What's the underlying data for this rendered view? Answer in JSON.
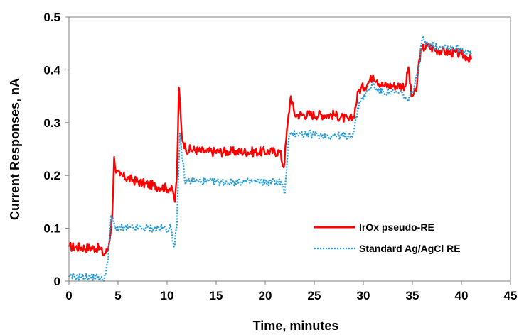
{
  "chart_data": {
    "type": "line",
    "title": "",
    "xlabel": "Time, minutes",
    "ylabel": "Current Responses, nA",
    "xlim": [
      0,
      45
    ],
    "ylim": [
      0,
      0.5
    ],
    "xticks": [
      "0",
      "5",
      "10",
      "15",
      "20",
      "25",
      "30",
      "35",
      "40",
      "45"
    ],
    "yticks": [
      "0",
      "0.1",
      "0.2",
      "0.3",
      "0.4",
      "0.5"
    ],
    "grid": false,
    "legend_position": "bottom-right",
    "series": [
      {
        "name": "IrOx pseudo-RE",
        "color": "#ff0000",
        "style": "solid",
        "x": [
          0,
          3.2,
          3.5,
          4.0,
          4.4,
          4.6,
          4.8,
          5.2,
          7.5,
          10.3,
          10.6,
          10.8,
          11.0,
          11.2,
          11.5,
          11.9,
          14.0,
          21.5,
          21.9,
          22.3,
          22.6,
          23.0,
          27.0,
          28.5,
          29.0,
          29.5,
          30.5,
          31.0,
          31.4,
          32.0,
          34.3,
          34.6,
          34.9,
          35.4,
          35.7,
          36.0,
          36.5,
          38.0,
          40.0,
          40.5,
          41.0
        ],
        "y": [
          0.065,
          0.062,
          0.05,
          0.06,
          0.12,
          0.235,
          0.205,
          0.2,
          0.185,
          0.175,
          0.17,
          0.15,
          0.2,
          0.367,
          0.275,
          0.25,
          0.245,
          0.245,
          0.215,
          0.3,
          0.35,
          0.315,
          0.315,
          0.305,
          0.31,
          0.36,
          0.375,
          0.39,
          0.38,
          0.37,
          0.37,
          0.405,
          0.35,
          0.36,
          0.42,
          0.44,
          0.445,
          0.435,
          0.43,
          0.425,
          0.42
        ]
      },
      {
        "name": "Standard Ag/AgCl RE",
        "color": "#1e9bd7",
        "style": "dotted",
        "x": [
          0,
          3.0,
          3.5,
          4.0,
          4.3,
          4.7,
          5.2,
          7.5,
          10.4,
          10.7,
          11.0,
          11.3,
          11.8,
          14.0,
          21.6,
          22.0,
          22.4,
          22.8,
          27.0,
          28.5,
          29.0,
          29.6,
          30.5,
          31.0,
          31.5,
          34.0,
          34.6,
          35.0,
          35.6,
          36.0,
          37.0,
          38.0,
          40.0,
          41.0
        ],
        "y": [
          0.008,
          0.008,
          0.0,
          0.04,
          0.125,
          0.1,
          0.1,
          0.1,
          0.1,
          0.065,
          0.105,
          0.28,
          0.19,
          0.188,
          0.188,
          0.165,
          0.27,
          0.28,
          0.275,
          0.275,
          0.28,
          0.34,
          0.36,
          0.375,
          0.36,
          0.355,
          0.34,
          0.36,
          0.395,
          0.46,
          0.445,
          0.445,
          0.44,
          0.43
        ]
      }
    ]
  }
}
